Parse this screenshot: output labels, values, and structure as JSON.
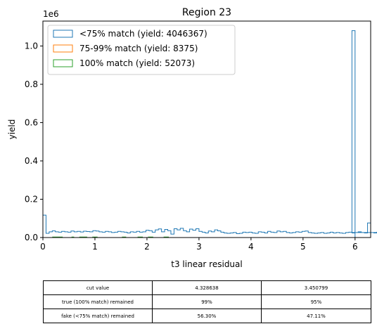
{
  "chart_data": {
    "type": "histogram",
    "title": "Region 23",
    "xlabel": "t3 linear residual",
    "ylabel": "yield",
    "y_offset_text": "1e6",
    "xlim": [
      0,
      6.3
    ],
    "ylim": [
      0,
      1.13
    ],
    "x_ticks": [
      0,
      1,
      2,
      3,
      4,
      5,
      6
    ],
    "x_tick_labels": [
      "0",
      "1",
      "2",
      "3",
      "4",
      "5",
      "6"
    ],
    "y_ticks": [
      0,
      0.2,
      0.4,
      0.6,
      0.8,
      1.0
    ],
    "y_tick_labels": [
      "0.0",
      "0.2",
      "0.4",
      "0.6",
      "0.8",
      "1.0"
    ],
    "y_scale_note": "values in units of 1e6",
    "grid": false,
    "legend_position": "top-left",
    "bin_width": 0.06,
    "series": [
      {
        "name": "<75% match (yield: 4046367)",
        "color": "#1f77b4",
        "bin_start": 0,
        "values": [
          0.117,
          0.022,
          0.03,
          0.035,
          0.03,
          0.028,
          0.032,
          0.03,
          0.028,
          0.034,
          0.03,
          0.032,
          0.029,
          0.033,
          0.031,
          0.03,
          0.036,
          0.034,
          0.03,
          0.028,
          0.032,
          0.03,
          0.026,
          0.028,
          0.032,
          0.03,
          0.028,
          0.024,
          0.03,
          0.028,
          0.032,
          0.028,
          0.03,
          0.038,
          0.036,
          0.028,
          0.04,
          0.045,
          0.03,
          0.042,
          0.036,
          0.018,
          0.046,
          0.04,
          0.048,
          0.036,
          0.03,
          0.044,
          0.038,
          0.046,
          0.032,
          0.028,
          0.024,
          0.034,
          0.03,
          0.04,
          0.035,
          0.028,
          0.024,
          0.022,
          0.024,
          0.026,
          0.02,
          0.022,
          0.028,
          0.026,
          0.028,
          0.024,
          0.022,
          0.03,
          0.028,
          0.024,
          0.032,
          0.028,
          0.026,
          0.034,
          0.03,
          0.032,
          0.026,
          0.024,
          0.026,
          0.03,
          0.028,
          0.032,
          0.034,
          0.026,
          0.024,
          0.022,
          0.024,
          0.026,
          0.022,
          0.024,
          0.028,
          0.024,
          0.026,
          0.024,
          0.022,
          0.026,
          0.028,
          0.024,
          0.026,
          0.03,
          0.026,
          0.024,
          0.076,
          0.026,
          0.024,
          0.028,
          0.03,
          0.026,
          0.024,
          0.02,
          0.022,
          0.024,
          0.018,
          0.022,
          0.024,
          0.02,
          0.026,
          0.022,
          0.024,
          0.026,
          0.022,
          0.02,
          0.026,
          0.024,
          0.028,
          0.024,
          0.022,
          0.024,
          0.026,
          0.024,
          0.028,
          0.024,
          0.026,
          0.026,
          0.024,
          0.028,
          0.026,
          0.024,
          0.028,
          0.026,
          0.024,
          0.026,
          0.024,
          0.028,
          0.024,
          0.026,
          0.026,
          0.028,
          0.024,
          0.026,
          0.028,
          0.026,
          0.024,
          0.028,
          0.026,
          0.024,
          0.026,
          0.028,
          0.024,
          0.026,
          0.026,
          0.024,
          0.028,
          0.026,
          0.024,
          0.026,
          0.026,
          0.028,
          0.024,
          0.026,
          0.028,
          0.024,
          0.026,
          0.026,
          0.024,
          0.028,
          0.026,
          0.024,
          0.026,
          0.028,
          0.024,
          0.026,
          0.026,
          0.024,
          0.028,
          0.026,
          0.024,
          0.026,
          0.026,
          0.028,
          0.024,
          0.026,
          0.026,
          0.024,
          0.028,
          0.026,
          0.024,
          0.026,
          0.026,
          0.028,
          0.024,
          0.026,
          0.026,
          0.024,
          0.028,
          0.026,
          0.024,
          0.026
        ]
      },
      {
        "name": "75-99% match (yield: 8375)",
        "color": "#ff7f0e",
        "bin_start": 0,
        "values": []
      },
      {
        "name": "100% match (yield: 52073)",
        "color": "#2ca02c",
        "segments": [
          [
            0.18,
            0.38
          ],
          [
            0.55,
            0.6
          ],
          [
            0.7,
            0.85
          ],
          [
            0.95,
            1.05
          ],
          [
            1.52,
            1.6
          ],
          [
            1.82,
            1.92
          ],
          [
            2.02,
            2.12
          ],
          [
            2.32,
            2.42
          ]
        ],
        "segment_value": 0.0
      }
    ],
    "last_bin": {
      "x0": 5.94,
      "x1": 6.0,
      "value": 1.08
    }
  },
  "table": {
    "rows": [
      [
        "cut value",
        "4.328638",
        "3.450799"
      ],
      [
        "true (100% match) remained",
        "99%",
        "95%"
      ],
      [
        "fake (<75% match) remained",
        "56.30%",
        "47.11%"
      ]
    ]
  }
}
